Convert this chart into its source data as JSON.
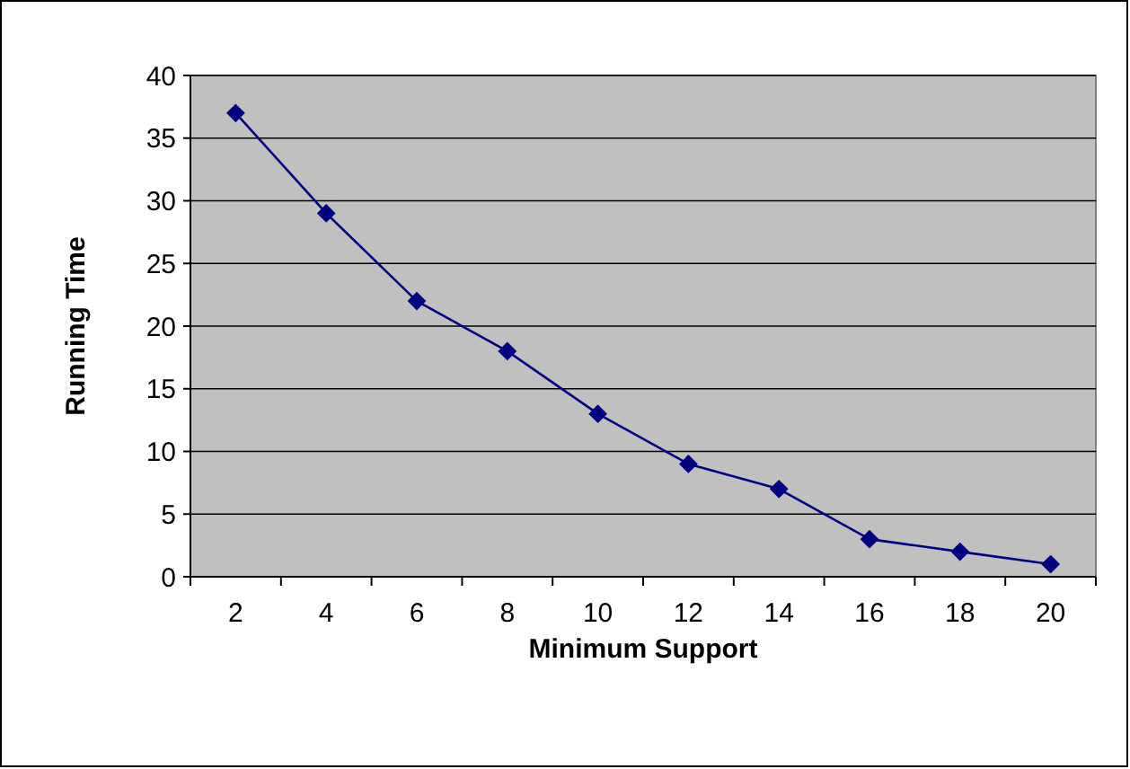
{
  "chart_data": {
    "type": "line",
    "xlabel": "Minimum Support",
    "ylabel": "Running Time",
    "categories": [
      "2",
      "4",
      "6",
      "8",
      "10",
      "12",
      "14",
      "16",
      "18",
      "20"
    ],
    "series": [
      {
        "color": "#000080",
        "values": [
          37,
          29,
          22,
          18,
          13,
          9,
          7,
          3,
          2,
          1
        ]
      }
    ],
    "ylim": [
      0,
      40
    ],
    "yticks": [
      0,
      5,
      10,
      15,
      20,
      25,
      30,
      35,
      40
    ],
    "grid": "y",
    "marker": "diamond",
    "line_style": "solid"
  }
}
